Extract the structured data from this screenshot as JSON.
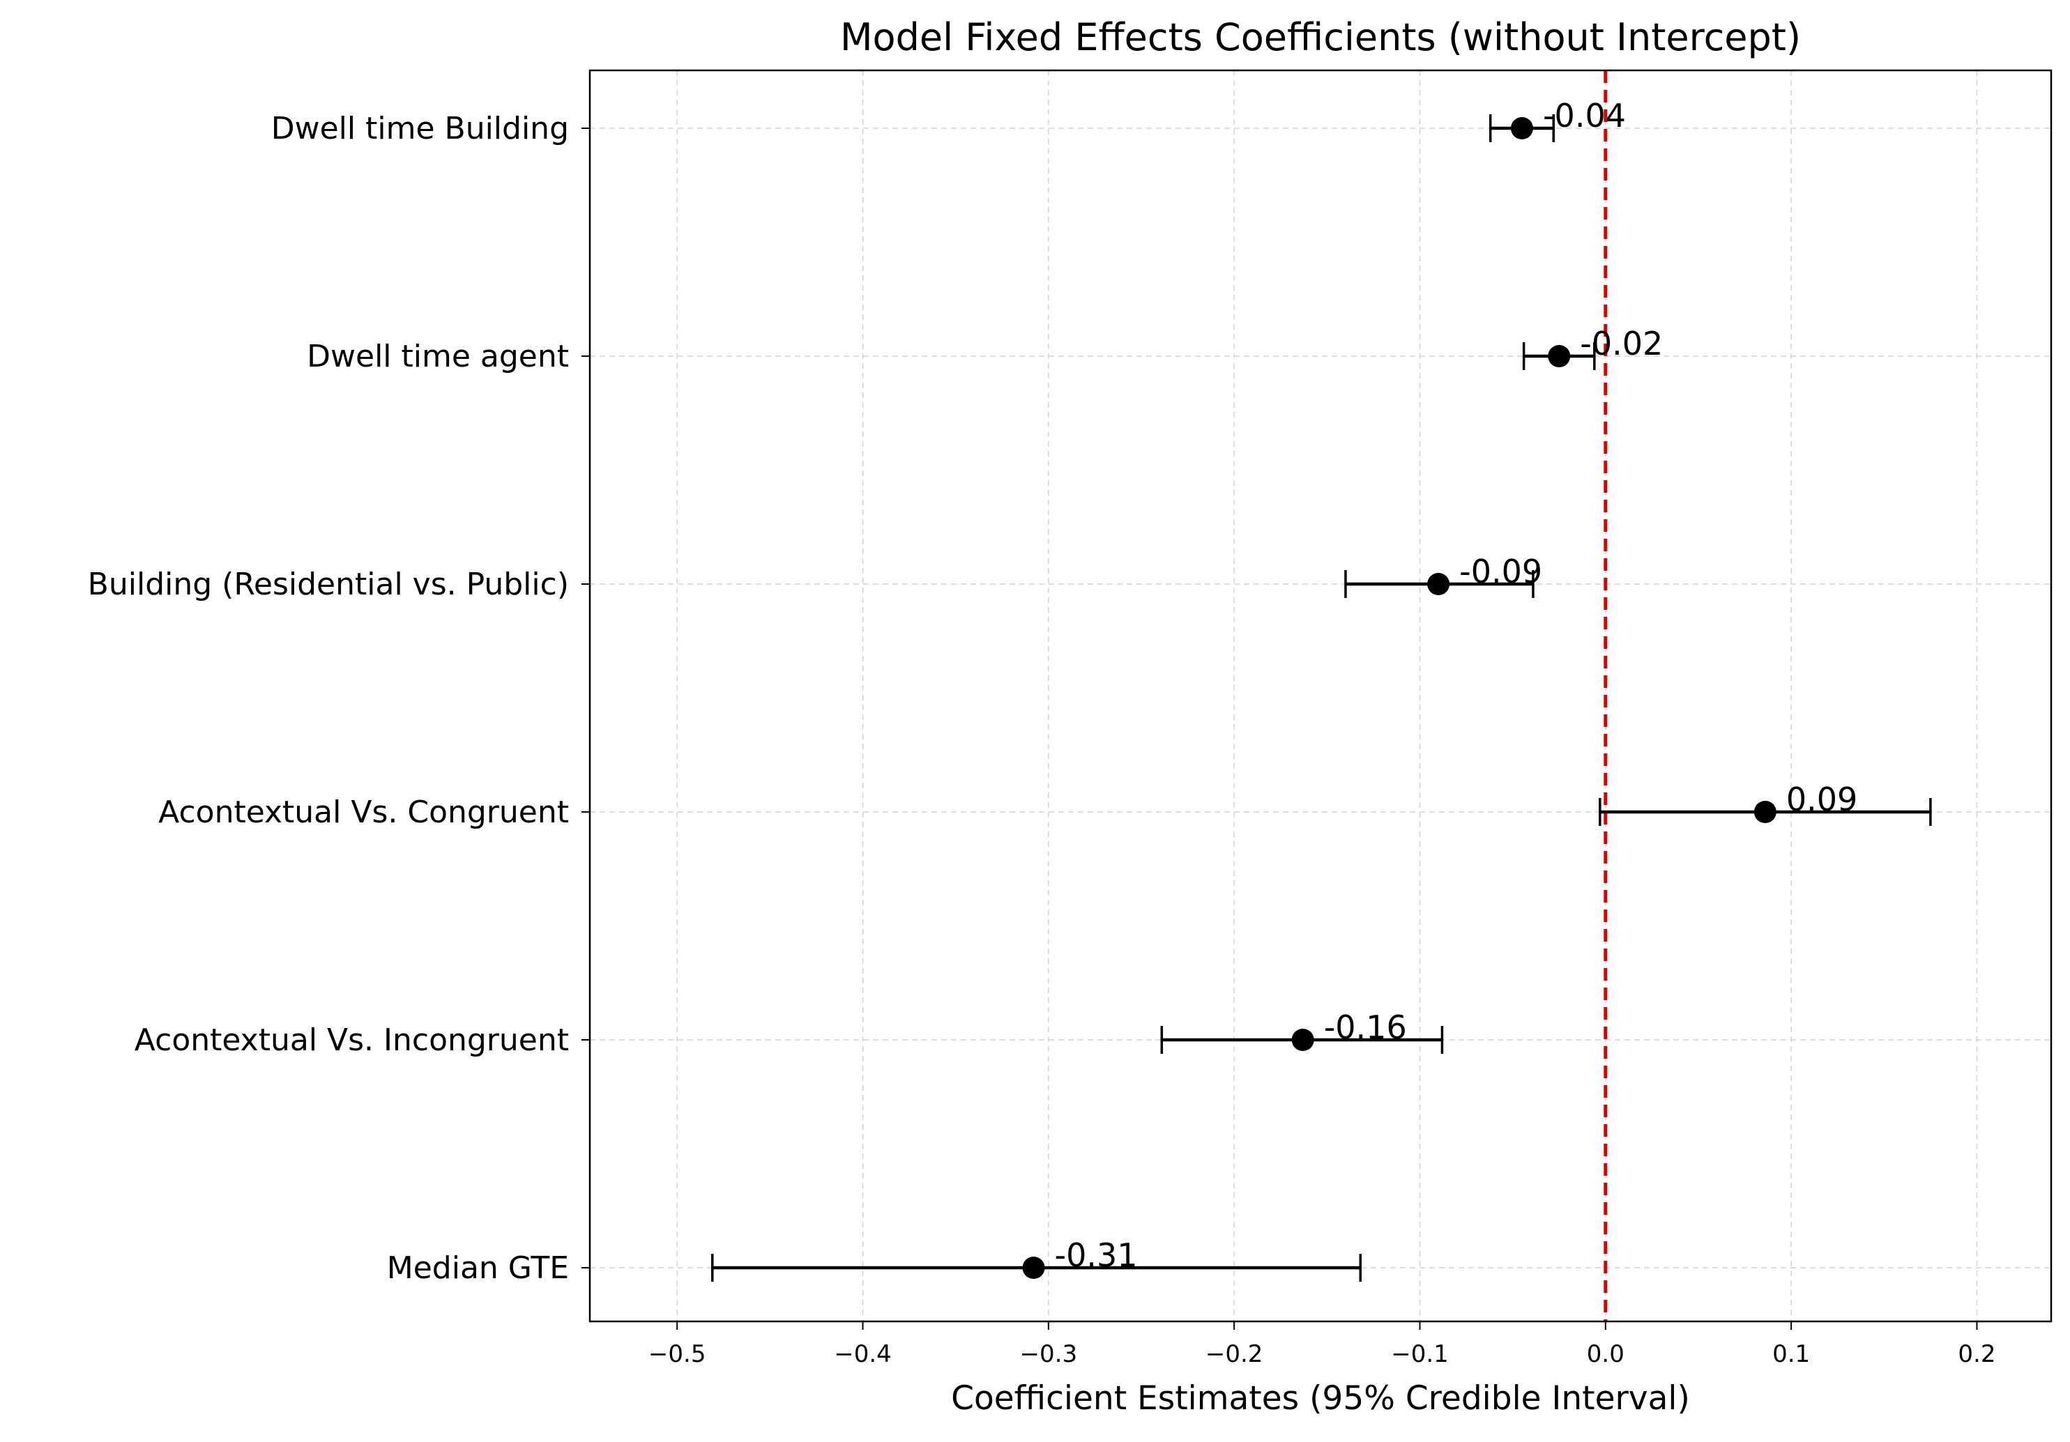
{
  "chart_data": {
    "type": "forest",
    "title": "Model Fixed Effects Coefficients (without Intercept)",
    "xlabel": "Coefficient Estimates (95% Credible Interval)",
    "ylabel": "",
    "xlim": [
      -0.547,
      0.24
    ],
    "x_ticks": [
      -0.5,
      -0.4,
      -0.3,
      -0.2,
      -0.1,
      0.0,
      0.1,
      0.2
    ],
    "x_tick_labels": [
      "−0.5",
      "−0.4",
      "−0.3",
      "−0.2",
      "−0.1",
      "0.0",
      "0.1",
      "0.2"
    ],
    "grid": true,
    "reference_line": {
      "x": 0.0,
      "color": "#dd0000",
      "style": "dashed"
    },
    "series": [
      {
        "points": [
          {
            "label": "Dwell time Building",
            "estimate": -0.045,
            "lower": -0.062,
            "upper": -0.028,
            "value_label": "-0.04"
          },
          {
            "label": "Dwell time agent",
            "estimate": -0.025,
            "lower": -0.044,
            "upper": -0.006,
            "value_label": "-0.02"
          },
          {
            "label": "Building (Residential vs. Public)",
            "estimate": -0.09,
            "lower": -0.14,
            "upper": -0.039,
            "value_label": "-0.09"
          },
          {
            "label": "Acontextual Vs. Congruent",
            "estimate": 0.086,
            "lower": -0.003,
            "upper": 0.175,
            "value_label": "0.09"
          },
          {
            "label": "Acontextual Vs. Incongruent",
            "estimate": -0.163,
            "lower": -0.239,
            "upper": -0.088,
            "value_label": "-0.16"
          },
          {
            "label": "Median GTE",
            "estimate": -0.308,
            "lower": -0.481,
            "upper": -0.132,
            "value_label": "-0.31"
          }
        ]
      }
    ],
    "colors": {
      "point": "#000000",
      "errorbar": "#000000",
      "grid": "#d3d3d3",
      "reference": "#dd0000"
    }
  }
}
